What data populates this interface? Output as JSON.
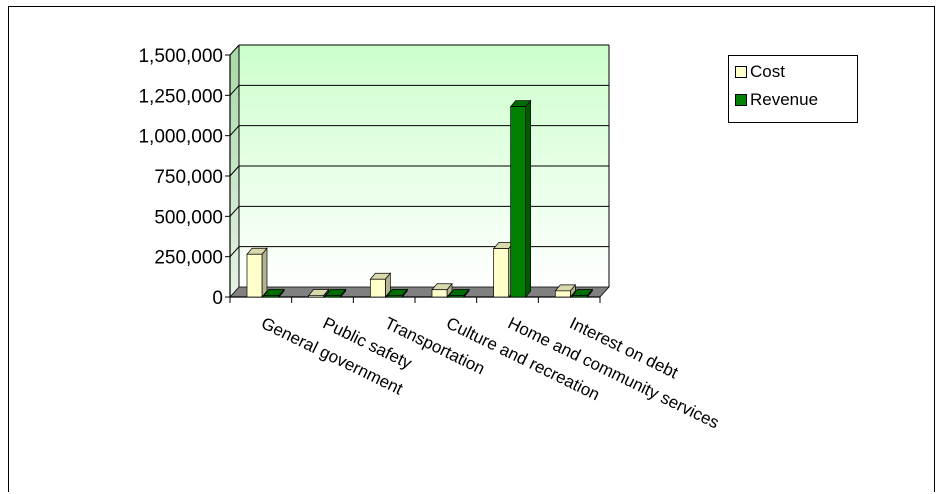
{
  "chart_data": {
    "type": "bar",
    "categories": [
      "General government",
      "Public safety",
      "Transportation",
      "Culture and recreation",
      "Home and community services",
      "Interest on debt"
    ],
    "series": [
      {
        "name": "Cost",
        "values": [
          265000,
          10000,
          110000,
          45000,
          300000,
          38000
        ],
        "color": "#ffffcc"
      },
      {
        "name": "Revenue",
        "values": [
          0,
          0,
          10000,
          8000,
          1180000,
          5000
        ],
        "color": "#008000"
      }
    ],
    "yticks": [
      "0",
      "250,000",
      "500,000",
      "750,000",
      "1,000,000",
      "1,250,000",
      "1,500,000"
    ],
    "ylim": [
      0,
      1500000
    ],
    "grid": true,
    "legend_position": "top-right",
    "plot_gradient": [
      "#ffffff",
      "#ccffcc"
    ],
    "floor_color": "#808080"
  }
}
